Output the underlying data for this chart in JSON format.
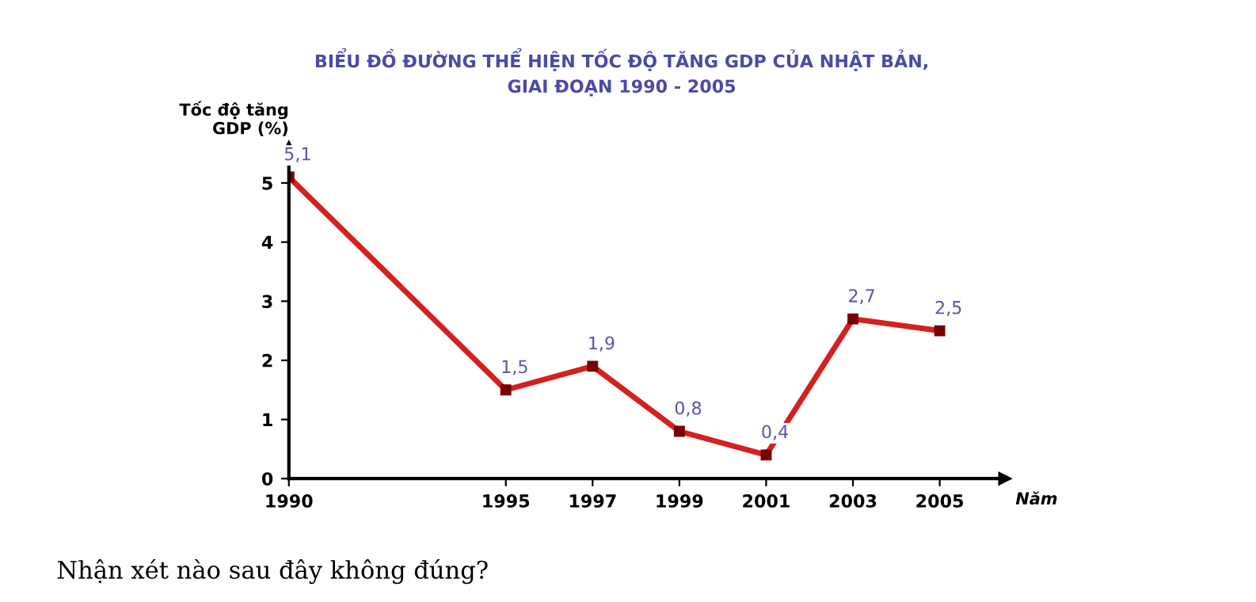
{
  "chart_data": {
    "type": "line",
    "title": "BIỂU ĐỒ ĐƯỜNG THỂ HIỆN TỐC ĐỘ TĂNG GDP CỦA NHẬT BẢN,\nGIAI ĐOẠN 1990 - 2005",
    "ylabel": "Tốc độ tăng\nGDP (%)",
    "xlabel": "Năm",
    "x": [
      1990,
      1995,
      1997,
      1999,
      2001,
      2003,
      2005
    ],
    "series": [
      {
        "color": "#d42020",
        "values": [
          5.1,
          1.5,
          1.9,
          0.8,
          0.4,
          2.7,
          2.5
        ],
        "value_labels": [
          "5,1",
          "1,5",
          "1,9",
          "0,8",
          "0,4",
          "2,7",
          "2,5"
        ]
      }
    ],
    "xlim": [
      1990,
      2006.5
    ],
    "xticks": [
      1990,
      1995,
      1997,
      1999,
      2001,
      2003,
      2005
    ],
    "ylim": [
      0,
      5.6
    ],
    "yticks": [
      0,
      1,
      2,
      3,
      4,
      5
    ],
    "marker": "square",
    "line_style": "solid",
    "grid": false,
    "legend": false,
    "annotations": [
      "Nhận xét nào sau đây không đúng?"
    ]
  }
}
